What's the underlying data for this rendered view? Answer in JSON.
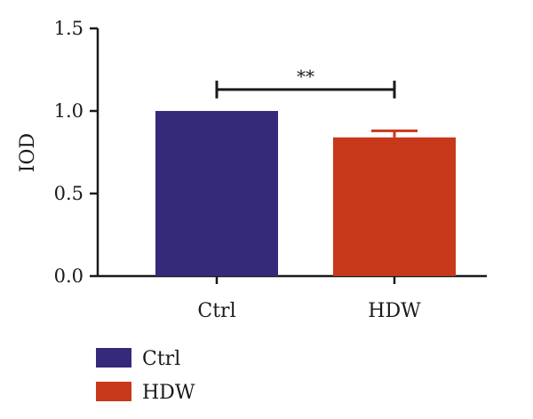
{
  "chart_data": {
    "type": "bar",
    "title": "",
    "xlabel": "",
    "ylabel": "IOD",
    "ylim": [
      0,
      1.5
    ],
    "yticks": [
      0.0,
      0.5,
      1.0,
      1.5
    ],
    "yticklabels": [
      "0.0",
      "0.5",
      "1.0",
      "1.5"
    ],
    "categories": [
      "Ctrl",
      "HDW"
    ],
    "values": [
      1.0,
      0.84
    ],
    "errors": [
      0.0,
      0.04
    ],
    "colors": [
      "#35297A",
      "#C8381A"
    ],
    "legend": {
      "position": "bottom-left",
      "entries": [
        {
          "label": "Ctrl",
          "color": "#35297A"
        },
        {
          "label": "HDW",
          "color": "#C8381A"
        }
      ]
    },
    "annotations": [
      {
        "type": "significance",
        "between": [
          "Ctrl",
          "HDW"
        ],
        "label": "**",
        "y": 1.13
      }
    ],
    "grid": false
  }
}
